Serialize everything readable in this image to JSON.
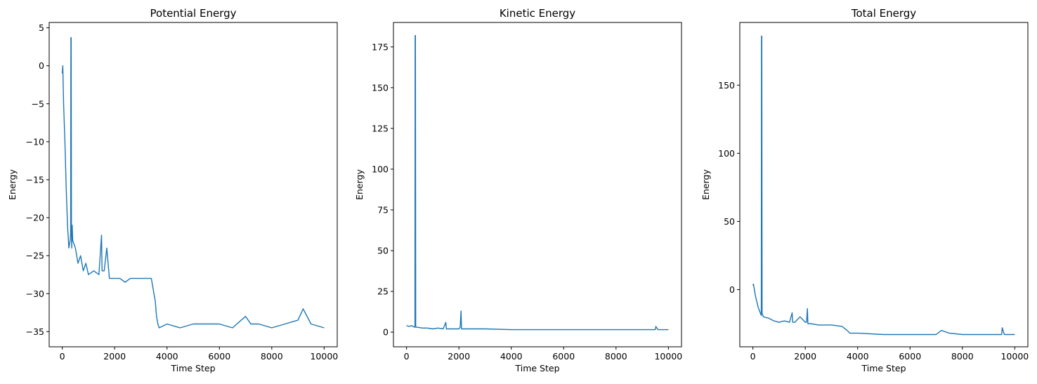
{
  "style": {
    "line_color": "#1f77b4"
  },
  "chart_data": [
    {
      "type": "line",
      "title": "Potential Energy",
      "xlabel": "Time Step",
      "ylabel": "Energy",
      "xlim": [
        -500,
        10500
      ],
      "ylim": [
        -37,
        5.7
      ],
      "xticks": [
        0,
        2000,
        4000,
        6000,
        8000,
        10000
      ],
      "xtick_labels": [
        "0",
        "2000",
        "4000",
        "6000",
        "8000",
        "10000"
      ],
      "yticks": [
        5,
        0,
        -5,
        -10,
        -15,
        -20,
        -25,
        -30,
        -35
      ],
      "ytick_labels": [
        "5",
        "0",
        "−5",
        "−10",
        "−15",
        "−20",
        "−25",
        "−30",
        "−35"
      ],
      "series": [
        {
          "x": [
            0,
            20,
            50,
            100,
            150,
            200,
            250,
            300,
            320,
            330,
            340,
            350,
            360,
            380,
            400,
            500,
            600,
            700,
            800,
            900,
            1000,
            1200,
            1400,
            1500,
            1520,
            1600,
            1700,
            1800,
            2000,
            2200,
            2400,
            2600,
            2800,
            3000,
            3200,
            3400,
            3500,
            3550,
            3600,
            3650,
            3700,
            4000,
            4500,
            5000,
            5500,
            6000,
            6500,
            7000,
            7200,
            7500,
            8000,
            8500,
            9000,
            9200,
            9500,
            10000
          ],
          "y": [
            -1,
            0,
            -5,
            -10,
            -16,
            -21,
            -24,
            -23,
            -22,
            3.7,
            3.7,
            -22,
            -24,
            -21,
            -23,
            -24,
            -26,
            -25,
            -27,
            -26,
            -27.5,
            -27,
            -27.5,
            -22.3,
            -27,
            -27,
            -24,
            -28,
            -28,
            -28,
            -28.5,
            -28,
            -28,
            -28,
            -28,
            -28,
            -30,
            -31,
            -33,
            -34,
            -34.5,
            -34,
            -34.5,
            -34,
            -34,
            -34,
            -34.5,
            -33,
            -34,
            -34,
            -34.5,
            -34,
            -33.5,
            -32,
            -34,
            -34.5
          ]
        }
      ]
    },
    {
      "type": "line",
      "title": "Kinetic Energy",
      "xlabel": "Time Step",
      "ylabel": "Energy",
      "xlim": [
        -500,
        10500
      ],
      "ylim": [
        -9,
        190
      ],
      "xticks": [
        0,
        2000,
        4000,
        6000,
        8000,
        10000
      ],
      "xtick_labels": [
        "0",
        "2000",
        "4000",
        "6000",
        "8000",
        "10000"
      ],
      "yticks": [
        0,
        25,
        50,
        75,
        100,
        125,
        150,
        175
      ],
      "ytick_labels": [
        "0",
        "25",
        "50",
        "75",
        "100",
        "125",
        "150",
        "175"
      ],
      "series": [
        {
          "x": [
            0,
            100,
            200,
            300,
            320,
            330,
            340,
            350,
            360,
            400,
            600,
            800,
            1000,
            1200,
            1400,
            1500,
            1520,
            1600,
            1800,
            2000,
            2050,
            2080,
            2100,
            2200,
            3000,
            4000,
            5000,
            6000,
            7000,
            8000,
            9000,
            9500,
            9520,
            9600,
            10000
          ],
          "y": [
            4,
            3.5,
            4,
            3,
            3.5,
            182,
            182,
            3,
            3,
            3,
            2.5,
            2.5,
            2,
            2.5,
            2,
            6,
            2,
            2,
            2,
            2,
            3,
            13,
            2,
            2,
            2,
            1.5,
            1.5,
            1.5,
            1.5,
            1.5,
            1.5,
            1.5,
            3.5,
            1.5,
            1.5
          ]
        }
      ]
    },
    {
      "type": "line",
      "title": "Total Energy",
      "xlabel": "Time Step",
      "ylabel": "Energy",
      "xlim": [
        -500,
        10500
      ],
      "ylim": [
        -42,
        196
      ],
      "xticks": [
        0,
        2000,
        4000,
        6000,
        8000,
        10000
      ],
      "xtick_labels": [
        "0",
        "2000",
        "4000",
        "6000",
        "8000",
        "10000"
      ],
      "yticks": [
        0,
        50,
        100,
        150
      ],
      "ytick_labels": [
        "0",
        "50",
        "100",
        "150"
      ],
      "series": [
        {
          "x": [
            0,
            20,
            100,
            200,
            300,
            320,
            330,
            340,
            350,
            360,
            400,
            600,
            800,
            1000,
            1200,
            1400,
            1500,
            1520,
            1600,
            1800,
            2000,
            2050,
            2080,
            2100,
            2200,
            2500,
            3000,
            3400,
            3600,
            3700,
            4000,
            5000,
            6000,
            7000,
            7200,
            7500,
            8000,
            9000,
            9500,
            9520,
            9600,
            10000
          ],
          "y": [
            3,
            4,
            -5,
            -13,
            -18,
            -19,
            186,
            186,
            -18,
            -18,
            -20,
            -21,
            -23,
            -24,
            -23,
            -24,
            -17,
            -24,
            -24,
            -20,
            -24,
            -24,
            -14,
            -25,
            -25,
            -26,
            -26,
            -27,
            -30,
            -32,
            -32,
            -33,
            -33,
            -33,
            -30,
            -32,
            -33,
            -33,
            -33,
            -28,
            -33,
            -33
          ]
        }
      ]
    }
  ]
}
